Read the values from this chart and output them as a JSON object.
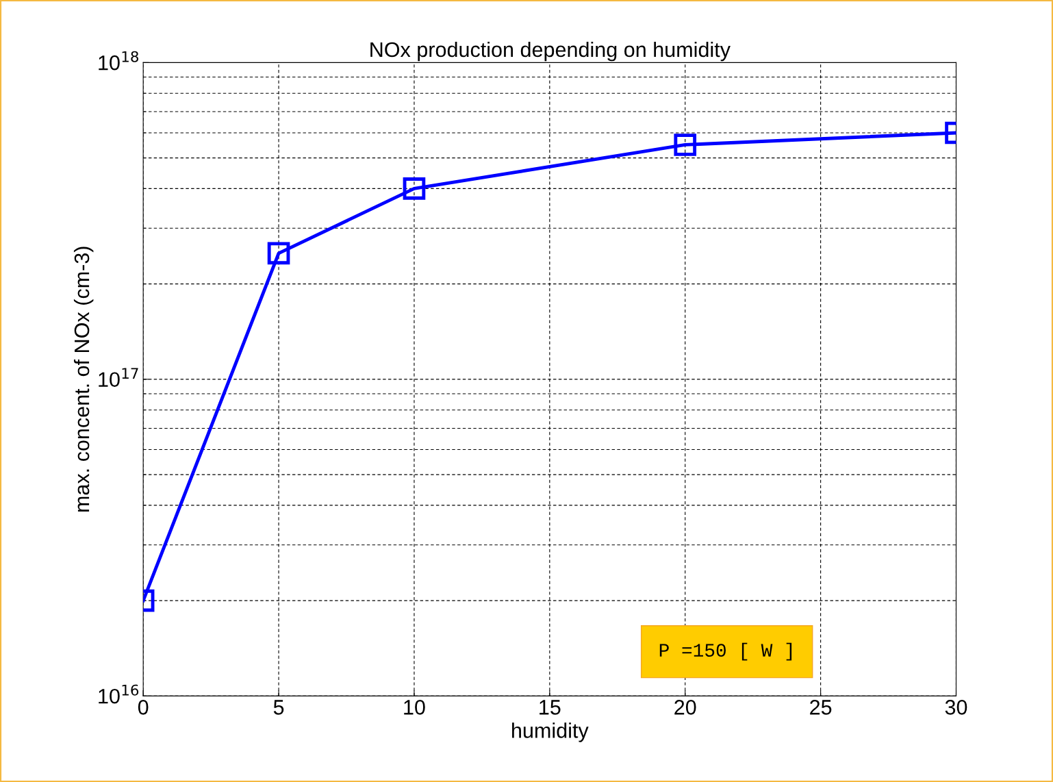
{
  "chart_data": {
    "type": "line",
    "title": "NOx production depending on humidity",
    "xlabel": "humidity",
    "ylabel": "max. concent. of NOx (cm-3)",
    "x": [
      0,
      5,
      10,
      20,
      30
    ],
    "series": [
      {
        "color": "#0000ff",
        "values": [
          2e+16,
          2.5e+17,
          4e+17,
          5.5e+17,
          6e+17
        ]
      }
    ],
    "log": "y",
    "xlim": [
      0,
      30
    ],
    "xticks": [
      0,
      5,
      10,
      15,
      20,
      25,
      30
    ],
    "ylim": [
      1e+16,
      1e+18
    ],
    "yticks": [
      {
        "value": 1e+16,
        "label": "10$^{16}$"
      },
      {
        "value": 1e+17,
        "label": "10$^{17}$"
      },
      {
        "value": 1e+18,
        "label": "10$^{18}$"
      }
    ],
    "grid": true,
    "marker": "square",
    "line_style": "solid",
    "legend": false,
    "annotations": [
      "P =150 [ W ]"
    ]
  }
}
